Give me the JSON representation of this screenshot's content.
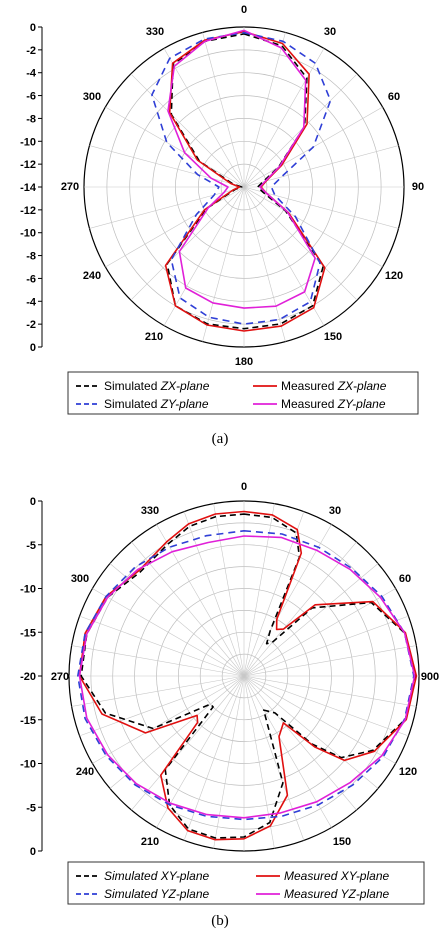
{
  "chart_data": [
    {
      "type": "polar-line",
      "panel": "a",
      "caption": "(a)",
      "angle_ticks": [
        "0",
        "30",
        "60",
        "90",
        "120",
        "150",
        "180",
        "210",
        "240",
        "270",
        "300",
        "330"
      ],
      "radial_ticks_upper": [
        "0",
        "-2",
        "-4",
        "-6",
        "-8",
        "-10",
        "-12",
        "-14"
      ],
      "radial_ticks_lower": [
        "-12",
        "-10",
        "-8",
        "-6",
        "-4",
        "-2",
        "0"
      ],
      "rlim": [
        -14,
        0
      ],
      "grid": true,
      "legend_position": "bottom",
      "series": [
        {
          "name_plain": "Simulated ",
          "name_italic": "ZX-plane",
          "color": "#000000",
          "dash": "6,4",
          "theta": [
            0,
            15,
            30,
            45,
            60,
            75,
            90,
            105,
            120,
            135,
            150,
            165,
            180,
            195,
            210,
            225,
            240,
            255,
            270,
            285,
            300,
            315,
            330,
            345
          ],
          "r": [
            -0.6,
            -1.2,
            -3.0,
            -6.5,
            -10.5,
            -12.3,
            -12.8,
            -12.3,
            -9.8,
            -4.2,
            -2.0,
            -1.6,
            -1.6,
            -1.6,
            -2.0,
            -4.5,
            -10.2,
            -13.2,
            -13.8,
            -13.0,
            -9.5,
            -5.0,
            -1.6,
            -0.8
          ]
        },
        {
          "name_plain": "Measured ",
          "name_italic": "ZX-plane",
          "color": "#e01010",
          "dash": "",
          "theta": [
            0,
            15,
            30,
            45,
            60,
            75,
            90,
            105,
            120,
            135,
            150,
            165,
            180,
            195,
            210,
            225,
            240,
            255,
            270,
            285,
            300,
            315,
            330,
            345
          ],
          "r": [
            -0.4,
            -1.0,
            -2.6,
            -6.2,
            -10.2,
            -12.0,
            -12.5,
            -12.0,
            -9.5,
            -4.0,
            -1.8,
            -1.4,
            -1.4,
            -1.5,
            -2.0,
            -4.3,
            -10.0,
            -13.0,
            -13.6,
            -12.8,
            -9.3,
            -4.8,
            -1.5,
            -0.7
          ]
        },
        {
          "name_plain": "Simulated ",
          "name_italic": "ZY-plane",
          "color": "#2f3fd6",
          "dash": "7,5",
          "theta": [
            0,
            15,
            30,
            45,
            60,
            75,
            90,
            105,
            120,
            135,
            150,
            165,
            180,
            195,
            210,
            225,
            240,
            255,
            270,
            285,
            300,
            315,
            330,
            345
          ],
          "r": [
            -0.5,
            -0.8,
            -1.5,
            -3.3,
            -7.0,
            -10.6,
            -11.6,
            -11.2,
            -8.8,
            -4.6,
            -2.4,
            -2.0,
            -2.0,
            -2.2,
            -2.8,
            -5.0,
            -9.2,
            -11.3,
            -11.8,
            -9.8,
            -6.2,
            -2.6,
            -1.0,
            -0.6
          ]
        },
        {
          "name_plain": "Measured ",
          "name_italic": "ZY-plane",
          "color": "#e020d8",
          "dash": "",
          "theta": [
            0,
            15,
            30,
            45,
            60,
            75,
            90,
            105,
            120,
            135,
            150,
            165,
            180,
            195,
            210,
            225,
            240,
            255,
            270,
            285,
            300,
            315,
            330,
            345
          ],
          "r": [
            -0.3,
            -1.4,
            -3.2,
            -6.6,
            -10.4,
            -12.1,
            -12.6,
            -12.0,
            -9.6,
            -5.2,
            -3.4,
            -3.2,
            -3.4,
            -3.5,
            -3.8,
            -6.0,
            -10.4,
            -12.2,
            -12.6,
            -11.0,
            -8.0,
            -4.6,
            -1.8,
            -0.8
          ]
        }
      ]
    },
    {
      "type": "polar-line",
      "panel": "b",
      "caption": "(b)",
      "angle_ticks": [
        "0",
        "30",
        "60",
        "900",
        "120",
        "150",
        "210",
        "240",
        "270",
        "300",
        "330"
      ],
      "radial_ticks_upper": [
        "0",
        "-5",
        "-10",
        "-15",
        "-20"
      ],
      "radial_ticks_lower": [
        "-15",
        "-10",
        "-5",
        "0"
      ],
      "rlim": [
        -20,
        0
      ],
      "grid": true,
      "legend_position": "bottom",
      "series": [
        {
          "name_plain": "",
          "name_italic": "Simulated XY-plane",
          "color": "#000000",
          "dash": "6,4",
          "theta": [
            0,
            10,
            20,
            25,
            30,
            35,
            40,
            45,
            60,
            75,
            90,
            105,
            120,
            130,
            135,
            140,
            150,
            160,
            170,
            180,
            190,
            200,
            210,
            220,
            225,
            230,
            240,
            255,
            270,
            285,
            300,
            315,
            330,
            340,
            350
          ],
          "r": [
            -1.5,
            -1.6,
            -2.6,
            -5.0,
            -14.0,
            -15.5,
            -15.0,
            -9.0,
            -3.2,
            -1.0,
            -0.4,
            -0.9,
            -3.0,
            -5.5,
            -9.0,
            -14.5,
            -15.5,
            -7.0,
            -3.0,
            -1.6,
            -1.2,
            -1.4,
            -3.0,
            -6.0,
            -15.0,
            -15.0,
            -8.0,
            -3.6,
            -1.4,
            -1.4,
            -2.0,
            -3.2,
            -2.6,
            -1.8,
            -1.5
          ]
        },
        {
          "name_plain": "",
          "name_italic": "Measured XY-plane",
          "color": "#e01010",
          "dash": "",
          "theta": [
            0,
            10,
            20,
            25,
            30,
            35,
            40,
            45,
            60,
            75,
            90,
            105,
            120,
            130,
            135,
            140,
            150,
            160,
            170,
            180,
            190,
            200,
            210,
            220,
            225,
            230,
            240,
            255,
            270,
            285,
            300,
            315,
            330,
            340,
            350
          ],
          "r": [
            -1.2,
            -1.3,
            -2.2,
            -4.5,
            -12.5,
            -13.5,
            -13.0,
            -8.5,
            -3.0,
            -0.9,
            -0.3,
            -0.8,
            -2.8,
            -5.0,
            -8.5,
            -13.0,
            -12.0,
            -5.5,
            -2.6,
            -1.4,
            -1.0,
            -1.2,
            -2.6,
            -5.2,
            -12.5,
            -13.0,
            -7.0,
            -3.2,
            -1.2,
            -1.2,
            -1.8,
            -3.0,
            -2.3,
            -1.5,
            -1.2
          ]
        },
        {
          "name_plain": "",
          "name_italic": "Simulated YZ-plane",
          "color": "#2f3fd6",
          "dash": "7,5",
          "theta": [
            0,
            15,
            30,
            45,
            60,
            75,
            90,
            105,
            120,
            135,
            150,
            165,
            180,
            195,
            210,
            225,
            240,
            255,
            270,
            285,
            300,
            315,
            330,
            345
          ],
          "r": [
            -3.4,
            -3.2,
            -3.0,
            -2.6,
            -1.8,
            -1.0,
            -0.6,
            -1.0,
            -1.6,
            -2.4,
            -3.0,
            -3.4,
            -3.6,
            -3.4,
            -3.0,
            -2.4,
            -1.8,
            -1.2,
            -1.0,
            -1.2,
            -1.8,
            -2.4,
            -3.0,
            -3.4
          ]
        },
        {
          "name_plain": "",
          "name_italic": "Measured YZ-plane",
          "color": "#e020d8",
          "dash": "",
          "theta": [
            0,
            15,
            30,
            45,
            60,
            75,
            90,
            105,
            120,
            135,
            150,
            165,
            180,
            195,
            210,
            225,
            240,
            255,
            270,
            285,
            300,
            315,
            330,
            345
          ],
          "r": [
            -4.0,
            -3.6,
            -3.4,
            -2.8,
            -2.0,
            -1.0,
            -0.5,
            -0.9,
            -1.8,
            -2.8,
            -3.4,
            -3.8,
            -3.8,
            -3.6,
            -3.2,
            -2.6,
            -2.0,
            -1.4,
            -1.2,
            -1.4,
            -2.0,
            -2.8,
            -3.6,
            -4.2
          ]
        }
      ]
    }
  ]
}
